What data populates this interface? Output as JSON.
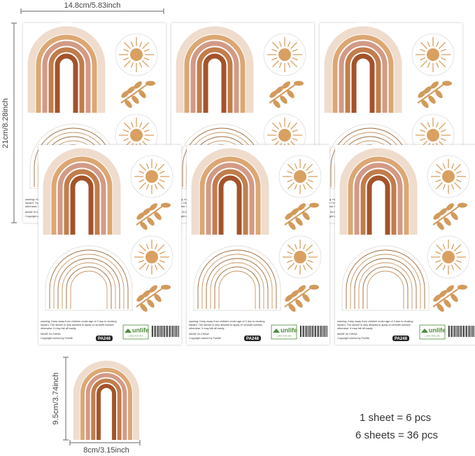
{
  "dimensions": {
    "sheet_width": "14.8cm/5.83inch",
    "sheet_height": "21cm/8.28inch",
    "sticker_height": "9.5cm/3.74inch",
    "sticker_width": "8cm/3.15inch"
  },
  "sheet": {
    "warning": [
      "warning: Keep away from children under age of 3 due to choking",
      "hazard. The sticker is only allowed to apply on smooth surface,",
      "otherwise, it may fall off easily."
    ],
    "made_in": "MADE IN CHINA",
    "copyright": "Copyright owned by Funlife",
    "code": "PA248",
    "brand": "unlife",
    "tagline": "LIVING FOR LIFE"
  },
  "notes": [
    "1 sheet = 6 pcs",
    "6 sheets = 36 pcs"
  ]
}
